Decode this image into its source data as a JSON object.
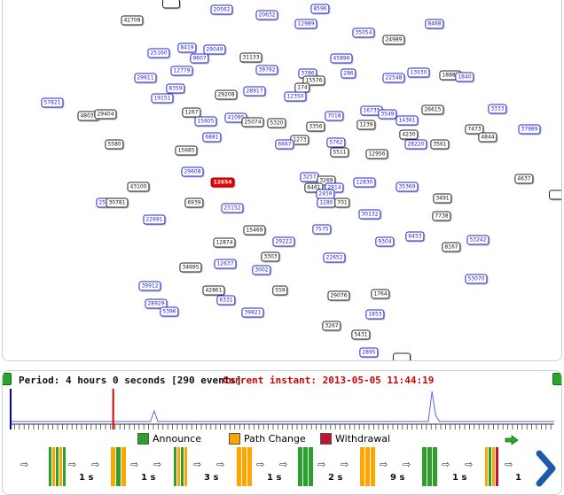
{
  "graph": {
    "nodes": [
      {
        "id": "42708",
        "c": "k"
      },
      {
        "id": "20562",
        "c": "b"
      },
      {
        "id": "20632",
        "c": "b"
      },
      {
        "id": "8596",
        "c": "b"
      },
      {
        "id": "12989",
        "c": "b"
      },
      {
        "id": "8468",
        "c": "b"
      },
      {
        "id": "35054",
        "c": "b"
      },
      {
        "id": "24989",
        "c": "k"
      },
      {
        "id": "25160",
        "c": "b"
      },
      {
        "id": "8419",
        "c": "b"
      },
      {
        "id": "29049",
        "c": "b"
      },
      {
        "id": "9607",
        "c": "b"
      },
      {
        "id": "31133",
        "c": "k"
      },
      {
        "id": "45896",
        "c": "b"
      },
      {
        "id": "12779",
        "c": "b"
      },
      {
        "id": "39792",
        "c": "b"
      },
      {
        "id": "3786",
        "c": "b"
      },
      {
        "id": "286",
        "c": "b"
      },
      {
        "id": "13030",
        "c": "b"
      },
      {
        "id": "18881",
        "c": "k"
      },
      {
        "id": "1840",
        "c": "b"
      },
      {
        "id": "29611",
        "c": "b"
      },
      {
        "id": "15576",
        "c": "k"
      },
      {
        "id": "22548",
        "c": "b"
      },
      {
        "id": "8359",
        "c": "b"
      },
      {
        "id": "174",
        "c": "k"
      },
      {
        "id": "29208",
        "c": "k"
      },
      {
        "id": "28917",
        "c": "b"
      },
      {
        "id": "12350",
        "c": "b"
      },
      {
        "id": "19151",
        "c": "b"
      },
      {
        "id": "57821",
        "c": "b"
      },
      {
        "id": "48039",
        "c": "k"
      },
      {
        "id": "29404",
        "c": "k"
      },
      {
        "id": "1267",
        "c": "k"
      },
      {
        "id": "16735",
        "c": "b"
      },
      {
        "id": "3549",
        "c": "b"
      },
      {
        "id": "26615",
        "c": "k"
      },
      {
        "id": "3333",
        "c": "b"
      },
      {
        "id": "15605",
        "c": "b"
      },
      {
        "id": "41095",
        "c": "b"
      },
      {
        "id": "25074",
        "c": "k"
      },
      {
        "id": "5320",
        "c": "k"
      },
      {
        "id": "7018",
        "c": "b"
      },
      {
        "id": "14361",
        "c": "b"
      },
      {
        "id": "3356",
        "c": "k"
      },
      {
        "id": "1239",
        "c": "k"
      },
      {
        "id": "4230",
        "c": "k"
      },
      {
        "id": "7473",
        "c": "k"
      },
      {
        "id": "37989",
        "c": "b"
      },
      {
        "id": "6881",
        "c": "b"
      },
      {
        "id": "1273",
        "c": "k"
      },
      {
        "id": "4844",
        "c": "k"
      },
      {
        "id": "5580",
        "c": "k"
      },
      {
        "id": "6667",
        "c": "b"
      },
      {
        "id": "5762",
        "c": "b"
      },
      {
        "id": "28220",
        "c": "b"
      },
      {
        "id": "3561",
        "c": "k"
      },
      {
        "id": "15685",
        "c": "k"
      },
      {
        "id": "5511",
        "c": "k"
      },
      {
        "id": "12956",
        "c": "k"
      },
      {
        "id": "29608",
        "c": "b"
      },
      {
        "id": "4637",
        "c": "k"
      },
      {
        "id": "12654",
        "c": "r"
      },
      {
        "id": "3257",
        "c": "b"
      },
      {
        "id": "3269",
        "c": "k"
      },
      {
        "id": "43100",
        "c": "k"
      },
      {
        "id": "6461",
        "c": "k"
      },
      {
        "id": "2914",
        "c": "b"
      },
      {
        "id": "12830",
        "c": "b"
      },
      {
        "id": "35369",
        "c": "b"
      },
      {
        "id": "2459",
        "c": "b"
      },
      {
        "id": "25091",
        "c": "b"
      },
      {
        "id": "30781",
        "c": "k"
      },
      {
        "id": "6939",
        "c": "k"
      },
      {
        "id": "25152",
        "c": "b"
      },
      {
        "id": "1280",
        "c": "b"
      },
      {
        "id": "701",
        "c": "k"
      },
      {
        "id": "3491",
        "c": "k"
      },
      {
        "id": "30132",
        "c": "b"
      },
      {
        "id": "22691",
        "c": "b"
      },
      {
        "id": "7738",
        "c": "k"
      },
      {
        "id": "15469",
        "c": "k"
      },
      {
        "id": "7575",
        "c": "b"
      },
      {
        "id": "6453",
        "c": "b"
      },
      {
        "id": "12874",
        "c": "k"
      },
      {
        "id": "29222",
        "c": "b"
      },
      {
        "id": "9304",
        "c": "b"
      },
      {
        "id": "8167",
        "c": "k"
      },
      {
        "id": "53242",
        "c": "b"
      },
      {
        "id": "3303",
        "c": "k"
      },
      {
        "id": "22652",
        "c": "b"
      },
      {
        "id": "34695",
        "c": "k"
      },
      {
        "id": "12637",
        "c": "b"
      },
      {
        "id": "3002",
        "c": "b"
      },
      {
        "id": "53070",
        "c": "b"
      },
      {
        "id": "39912",
        "c": "b"
      },
      {
        "id": "42861",
        "c": "k"
      },
      {
        "id": "559",
        "c": "k"
      },
      {
        "id": "29076",
        "c": "k"
      },
      {
        "id": "1764",
        "c": "k"
      },
      {
        "id": "6331",
        "c": "b"
      },
      {
        "id": "28929",
        "c": "b"
      },
      {
        "id": "5396",
        "c": "b"
      },
      {
        "id": "39821",
        "c": "b"
      },
      {
        "id": "1853",
        "c": "b"
      },
      {
        "id": "3267",
        "c": "k"
      },
      {
        "id": "5431",
        "c": "k"
      },
      {
        "id": "2895",
        "c": "b"
      }
    ]
  },
  "header": {
    "period": "Period: 4 hours 0 seconds [290 events]",
    "instant": "Current instant: 2013-05-05 11:44:19"
  },
  "legend": [
    {
      "label": "Announce",
      "color": "#2ca02c"
    },
    {
      "label": "Path Change",
      "color": "#ffa500"
    },
    {
      "label": "Withdrawal",
      "color": "#c0152f"
    }
  ],
  "colors": {
    "announce": "#2ca02c",
    "path_change": "#ffa500",
    "withdrawal": "#c0152f",
    "current": "#e00000",
    "start": "#0000cc"
  },
  "timeline": {
    "note_current_fraction": 0.19,
    "activity": [
      0,
      0,
      0,
      0,
      0,
      0,
      0,
      0,
      0,
      0,
      0,
      0,
      0,
      0,
      0,
      0,
      0,
      0,
      0,
      0,
      0,
      0,
      0,
      0,
      0,
      0,
      0,
      0,
      0,
      0,
      0,
      0,
      0,
      0,
      0,
      0,
      0,
      0,
      0,
      0.35,
      0,
      0,
      0,
      0,
      0,
      0,
      0,
      0,
      0,
      0,
      0,
      0,
      0,
      0,
      0,
      0,
      0,
      0,
      0,
      0,
      0,
      0,
      0,
      0,
      0,
      0,
      0,
      0,
      0,
      0,
      0,
      0,
      0,
      0,
      0,
      0,
      0,
      0,
      0,
      0,
      0,
      0,
      0,
      0,
      0,
      0,
      0,
      0,
      0,
      0,
      0,
      0,
      0,
      0,
      0,
      0,
      0,
      0,
      0,
      0,
      0,
      0,
      0,
      0,
      0,
      0,
      0,
      0,
      0,
      0,
      0,
      0,
      0,
      0,
      1.0,
      0.2,
      0,
      0,
      0,
      0,
      0,
      0,
      0,
      0,
      0,
      0,
      0,
      0,
      0,
      0,
      0,
      0,
      0,
      0,
      0,
      0,
      0,
      0,
      0,
      0,
      0,
      0,
      0,
      0,
      0,
      0,
      0,
      0
    ]
  },
  "sequence": {
    "gaps": [
      "1 s",
      "1 s",
      "3 s",
      "1 s",
      "2 s",
      "9 s",
      "1 s",
      "1"
    ],
    "groups": [
      [
        "announce",
        "path_change",
        "announce",
        "path_change",
        "announce"
      ],
      [
        "path_change",
        "announce",
        "path_change"
      ],
      [
        "announce",
        "path_change",
        "announce",
        "path_change"
      ],
      [
        "path_change",
        "path_change",
        "path_change"
      ],
      [
        "announce",
        "announce",
        "announce"
      ],
      [
        "path_change",
        "path_change",
        "path_change"
      ],
      [
        "announce",
        "announce",
        "announce"
      ],
      [
        "path_change",
        "announce",
        "path_change",
        "withdrawal"
      ]
    ]
  }
}
